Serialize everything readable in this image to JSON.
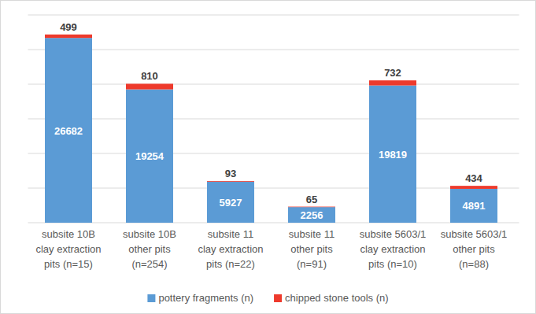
{
  "chart_data": {
    "type": "bar",
    "stacked": true,
    "data_labels": true,
    "tick_labels": "x",
    "grid": true,
    "legend": "bottom",
    "categories": [
      "subsite 10B\nclay extraction\npits (n=15)",
      "subsite 10B\nother pits\n(n=254)",
      "subsite 11\nclay extraction\npits (n=22)",
      "subsite 11\nother pits\n(n=91)",
      "subsite 5603/1\nclay extraction\npits (n=10)",
      "subsite 5603/1\nother pits\n(n=88)"
    ],
    "series": [
      {
        "name": "pottery fragments (n)",
        "color": "#5b9bd5",
        "values": [
          26682,
          19254,
          5927,
          2256,
          19819,
          4891
        ]
      },
      {
        "name": "chipped stone tools (n)",
        "color": "#ee3a2c",
        "values": [
          499,
          810,
          93,
          65,
          732,
          434
        ]
      }
    ],
    "ylim": [
      0,
      30000
    ],
    "yticks": [
      0,
      5000,
      10000,
      15000,
      20000,
      25000,
      30000
    ]
  }
}
